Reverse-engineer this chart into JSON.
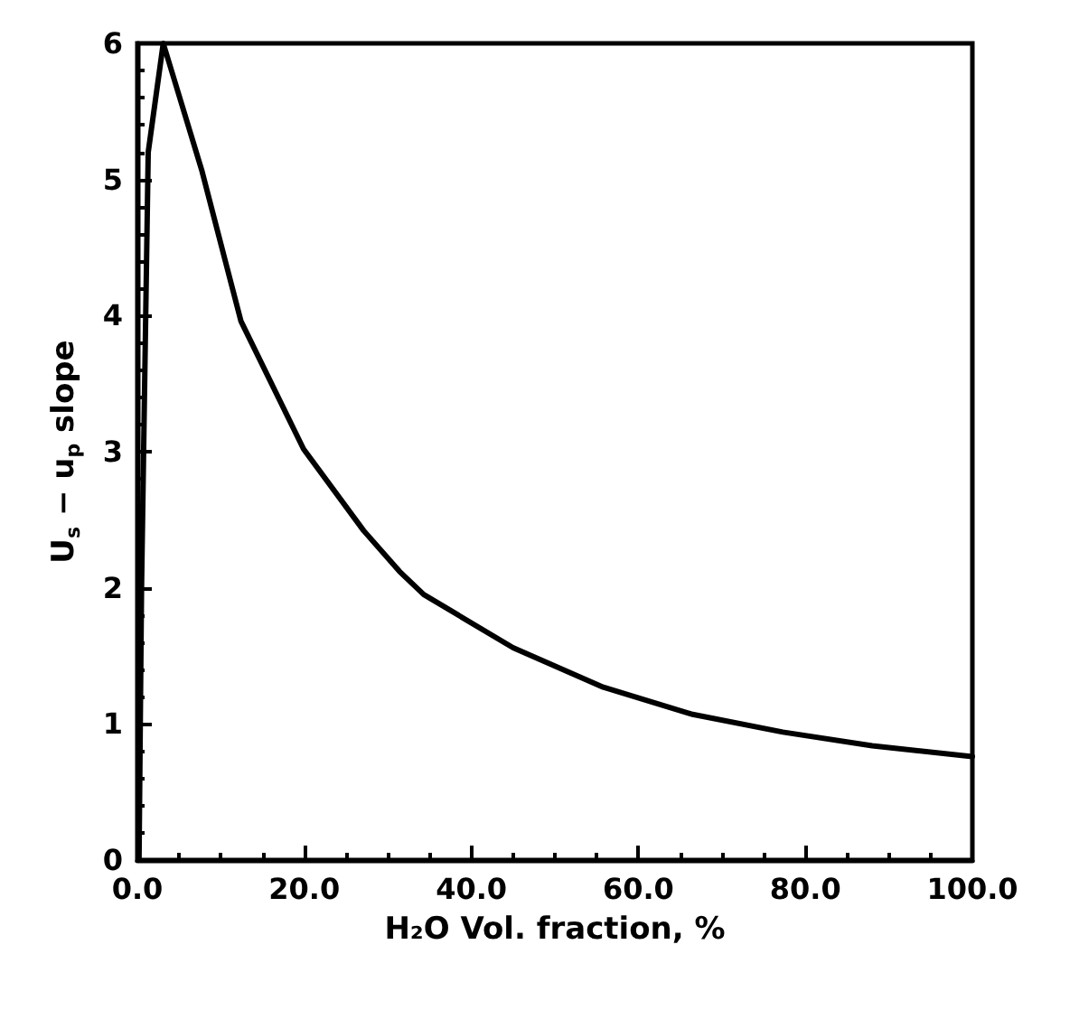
{
  "chart_data": {
    "type": "line",
    "xlabel": "H₂O Vol. fraction, %",
    "ylabel": "U$_{s}$ − u$_{p}$ slope",
    "xlim": [
      0,
      100
    ],
    "ylim": [
      0,
      6
    ],
    "xticks": [
      {
        "value": 0,
        "label": "0.0"
      },
      {
        "value": 20,
        "label": "20.0"
      },
      {
        "value": 40,
        "label": "40.0"
      },
      {
        "value": 60,
        "label": "60.0"
      },
      {
        "value": 80,
        "label": "80.0"
      },
      {
        "value": 100,
        "label": "100.0"
      }
    ],
    "yticks": [
      0,
      1,
      2,
      3,
      4,
      5,
      6
    ],
    "grid": false,
    "marker": "none",
    "line_style": "solid",
    "series": [
      {
        "color": "#000000",
        "x": [
          0.2,
          0.5,
          1.3,
          3.1,
          7.7,
          12.4,
          19.9,
          27.1,
          31.4,
          34.3,
          45,
          55.8,
          66.5,
          77.3,
          88,
          100
        ],
        "values": [
          0,
          2,
          5.2,
          6,
          5.07,
          3.96,
          3.02,
          2.42,
          2.12,
          1.95,
          1.56,
          1.27,
          1.07,
          0.94,
          0.84,
          0.76
        ]
      }
    ]
  }
}
